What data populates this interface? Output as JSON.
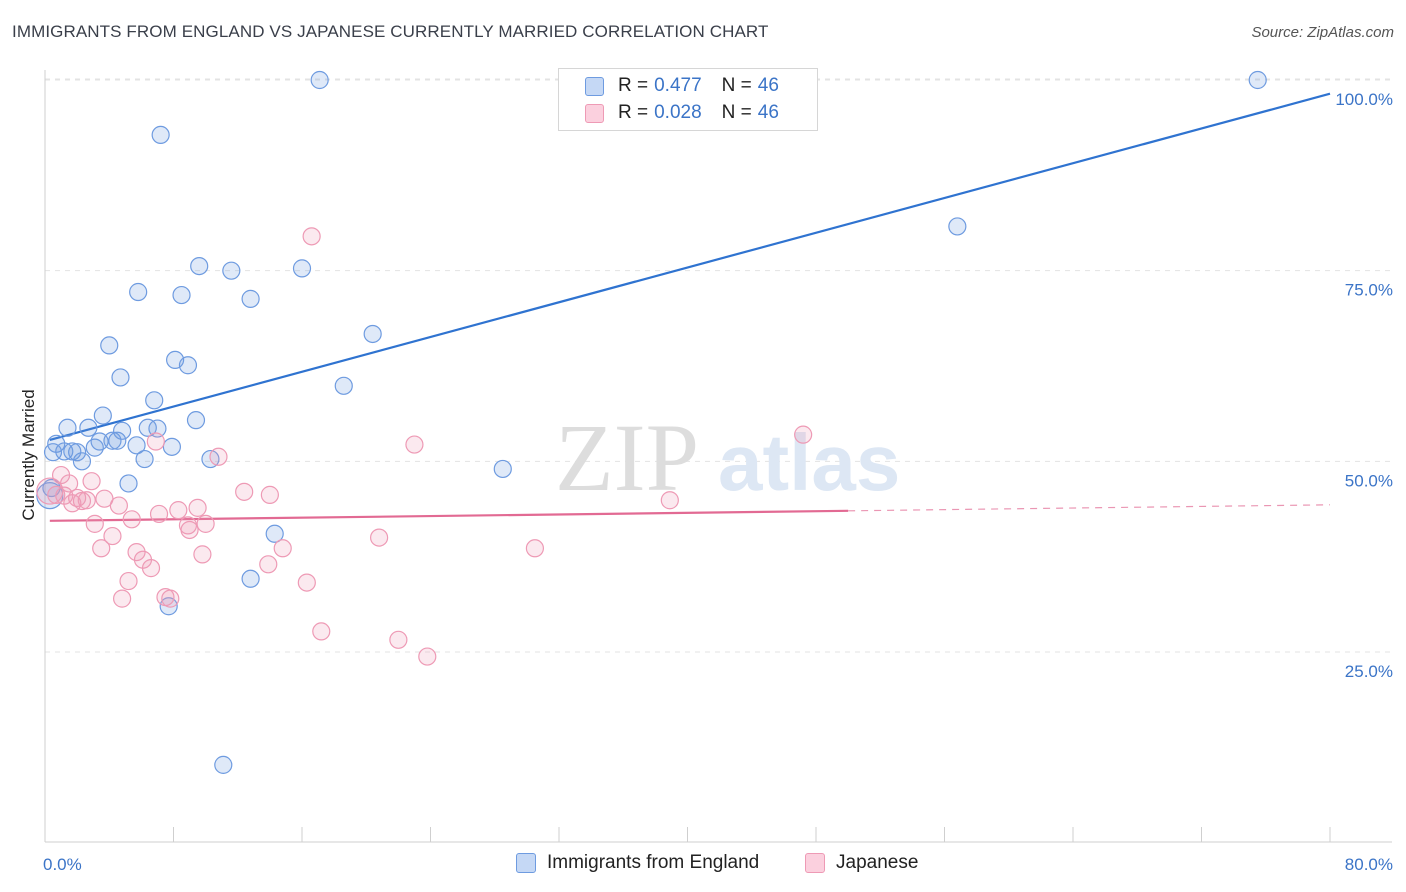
{
  "title": "IMMIGRANTS FROM ENGLAND VS JAPANESE CURRENTLY MARRIED CORRELATION CHART",
  "source": "Source: ZipAtlas.com",
  "watermark": {
    "zip": "ZIP",
    "atlas": "atlas"
  },
  "legend": {
    "rows": [
      {
        "r_label": "R =",
        "r_value": "0.477",
        "n_label": "N =",
        "n_value": "46"
      },
      {
        "r_label": "R =",
        "r_value": "0.028",
        "n_label": "N =",
        "n_value": "46"
      }
    ]
  },
  "chart_data": {
    "type": "scatter",
    "title": "IMMIGRANTS FROM ENGLAND VS JAPANESE CURRENTLY MARRIED CORRELATION CHART",
    "xlabel": "",
    "ylabel": "Currently Married",
    "xlim": [
      0,
      80
    ],
    "ylim": [
      2,
      104
    ],
    "x_tick_labels": [
      "0.0%",
      "80.0%"
    ],
    "y_ticks": [
      25,
      50,
      75,
      100
    ],
    "y_tick_labels": [
      "25.0%",
      "50.0%",
      "75.0%",
      "100.0%"
    ],
    "grid": "horizontal dashed",
    "legend_position": "bottom-center",
    "colors": {
      "england": "#6e9be0",
      "japanese": "#ee9ab5",
      "england_line": "#2f73d0",
      "japanese_line": "#e26a93"
    },
    "series": [
      {
        "name": "Immigrants from England",
        "color": "#6e9be0",
        "r": 0.477,
        "n": 46,
        "trend": {
          "x": [
            0.3,
            80
          ],
          "y": [
            52.8,
            98.2
          ],
          "style": "solid"
        },
        "points": [
          [
            0.3,
            45.5
          ],
          [
            0.5,
            51.2
          ],
          [
            0.7,
            52.3
          ],
          [
            1.2,
            51.3
          ],
          [
            1.4,
            54.4
          ],
          [
            1.7,
            51.3
          ],
          [
            2.3,
            50.0
          ],
          [
            2.7,
            54.4
          ],
          [
            3.1,
            51.8
          ],
          [
            3.4,
            52.6
          ],
          [
            3.6,
            56.0
          ],
          [
            4.0,
            65.2
          ],
          [
            4.2,
            52.7
          ],
          [
            4.5,
            52.7
          ],
          [
            4.7,
            61.0
          ],
          [
            4.8,
            54.0
          ],
          [
            5.2,
            47.1
          ],
          [
            5.7,
            52.1
          ],
          [
            5.8,
            72.2
          ],
          [
            6.2,
            50.3
          ],
          [
            6.4,
            54.4
          ],
          [
            6.8,
            58.0
          ],
          [
            7.0,
            54.3
          ],
          [
            7.2,
            92.8
          ],
          [
            7.7,
            31.0
          ],
          [
            7.9,
            51.9
          ],
          [
            8.1,
            63.3
          ],
          [
            8.5,
            71.8
          ],
          [
            8.9,
            62.6
          ],
          [
            9.4,
            55.4
          ],
          [
            9.6,
            75.6
          ],
          [
            10.3,
            50.3
          ],
          [
            11.1,
            10.2
          ],
          [
            11.6,
            75.0
          ],
          [
            12.8,
            71.3
          ],
          [
            12.8,
            34.6
          ],
          [
            14.3,
            40.5
          ],
          [
            16.0,
            75.3
          ],
          [
            17.1,
            100.0
          ],
          [
            18.6,
            59.9
          ],
          [
            20.4,
            66.7
          ],
          [
            28.5,
            49.0
          ],
          [
            56.8,
            80.8
          ],
          [
            75.5,
            100.0
          ],
          [
            0.4,
            46.5
          ],
          [
            2.0,
            51.2
          ]
        ]
      },
      {
        "name": "Japanese",
        "color": "#ee9ab5",
        "r": 0.028,
        "n": 46,
        "trend": {
          "x": [
            0.3,
            80
          ],
          "y": [
            42.2,
            44.3
          ],
          "style": "solid-then-dashed",
          "solid_until_x": 50
        },
        "points": [
          [
            0.3,
            46.1
          ],
          [
            0.7,
            45.6
          ],
          [
            1.0,
            48.2
          ],
          [
            1.2,
            45.5
          ],
          [
            1.5,
            47.1
          ],
          [
            1.7,
            44.5
          ],
          [
            2.0,
            45.2
          ],
          [
            2.3,
            44.8
          ],
          [
            2.6,
            44.9
          ],
          [
            2.9,
            47.4
          ],
          [
            3.1,
            41.8
          ],
          [
            3.5,
            38.6
          ],
          [
            3.7,
            45.1
          ],
          [
            4.2,
            40.2
          ],
          [
            4.6,
            44.2
          ],
          [
            4.8,
            32.0
          ],
          [
            5.2,
            34.3
          ],
          [
            5.4,
            42.4
          ],
          [
            5.7,
            38.1
          ],
          [
            6.1,
            37.1
          ],
          [
            6.6,
            36.0
          ],
          [
            6.9,
            52.6
          ],
          [
            7.1,
            43.1
          ],
          [
            7.8,
            32.0
          ],
          [
            8.3,
            43.6
          ],
          [
            8.9,
            41.6
          ],
          [
            9.0,
            41.0
          ],
          [
            9.5,
            43.9
          ],
          [
            9.8,
            37.8
          ],
          [
            10.8,
            50.6
          ],
          [
            12.4,
            46.0
          ],
          [
            13.9,
            36.5
          ],
          [
            14.0,
            45.6
          ],
          [
            14.8,
            38.6
          ],
          [
            16.3,
            34.1
          ],
          [
            16.6,
            79.5
          ],
          [
            17.2,
            27.7
          ],
          [
            20.8,
            40.0
          ],
          [
            22.0,
            26.6
          ],
          [
            23.0,
            52.2
          ],
          [
            23.8,
            24.4
          ],
          [
            30.5,
            38.6
          ],
          [
            38.9,
            44.9
          ],
          [
            47.2,
            53.5
          ],
          [
            10.0,
            41.8
          ],
          [
            7.5,
            32.2
          ]
        ]
      }
    ]
  },
  "bottom_legend": [
    {
      "label": "Immigrants from England"
    },
    {
      "label": "Japanese"
    }
  ]
}
